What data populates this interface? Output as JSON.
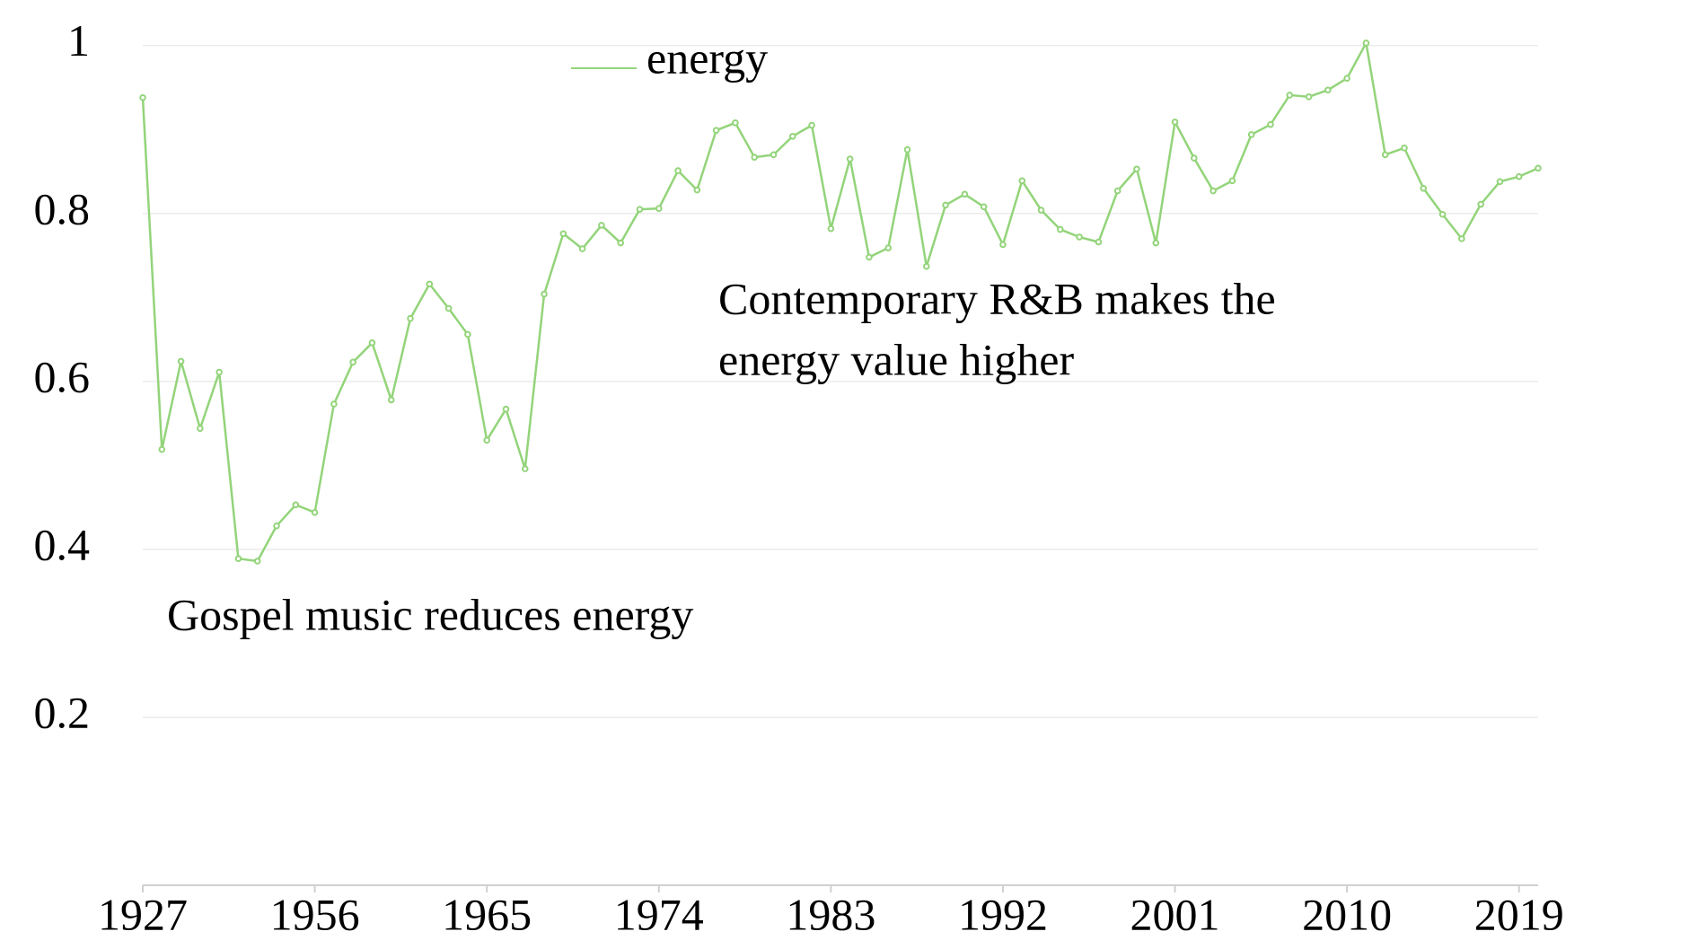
{
  "chart_data": {
    "type": "line",
    "categories": [
      "1927",
      null,
      null,
      null,
      null,
      null,
      null,
      null,
      null,
      "1956",
      null,
      null,
      null,
      null,
      null,
      null,
      null,
      null,
      "1965",
      null,
      null,
      null,
      null,
      null,
      null,
      null,
      null,
      "1974",
      null,
      null,
      null,
      null,
      null,
      null,
      null,
      null,
      "1983",
      null,
      null,
      null,
      null,
      null,
      null,
      null,
      null,
      "1992",
      null,
      null,
      null,
      null,
      null,
      null,
      null,
      null,
      "2001",
      null,
      null,
      null,
      null,
      null,
      null,
      null,
      null,
      "2010",
      null,
      null,
      null,
      null,
      null,
      null,
      null,
      null,
      "2019",
      null
    ],
    "series": [
      {
        "name": "energy",
        "color": "#93d47a",
        "values": [
          0.938,
          0.519,
          0.624,
          0.544,
          0.611,
          0.389,
          0.386,
          0.428,
          0.453,
          0.444,
          0.573,
          0.623,
          0.646,
          0.578,
          0.675,
          0.716,
          0.687,
          0.656,
          0.53,
          0.567,
          0.496,
          0.704,
          0.776,
          0.758,
          0.786,
          0.765,
          0.805,
          0.806,
          0.851,
          0.828,
          0.899,
          0.908,
          0.867,
          0.87,
          0.892,
          0.905,
          0.782,
          0.865,
          0.748,
          0.759,
          0.876,
          0.737,
          0.81,
          0.823,
          0.808,
          0.763,
          0.839,
          0.804,
          0.781,
          0.772,
          0.766,
          0.827,
          0.853,
          0.765,
          0.909,
          0.866,
          0.827,
          0.839,
          0.894,
          0.906,
          0.941,
          0.939,
          0.947,
          0.961,
          1.003,
          0.87,
          0.878,
          0.83,
          0.799,
          0.77,
          0.811,
          0.838,
          0.844,
          0.854
        ]
      }
    ],
    "ylim": [
      0,
      1.05
    ],
    "yticks": [
      {
        "value": 0.2,
        "label": "0.2"
      },
      {
        "value": 0.4,
        "label": "0.4"
      },
      {
        "value": 0.6,
        "label": "0.6"
      },
      {
        "value": 0.8,
        "label": "0.8"
      },
      1
    ],
    "grid": true,
    "legend": "top",
    "annotations": [
      {
        "lines": [
          "Contemporary R&B makes the",
          "energy value higher"
        ]
      },
      {
        "lines": [
          "Gospel music reduces energy"
        ]
      }
    ]
  }
}
